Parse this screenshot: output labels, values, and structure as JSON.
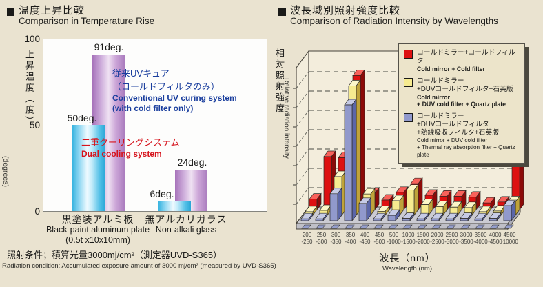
{
  "left_panel": {
    "title_jp": "温度上昇比較",
    "title_en": "Comparison in Temperature Rise",
    "y_axis": {
      "label_jp": "上昇温度（度）",
      "label_en": "(degrees)",
      "ticks": [
        "100",
        "50",
        "0"
      ]
    },
    "legend_conventional": {
      "jp1": "従来UVキュア",
      "jp2": "（コールドフィルタのみ）",
      "en1": "Conventional UV curing system",
      "en2": "(with cold filter only)",
      "color": "#1b3f9e"
    },
    "legend_dual": {
      "jp": "二重クーリングシステム",
      "en": "Dual cooling system",
      "color": "#d6131c"
    },
    "footer_jp": "照射条件；積算光量3000mj/cm²（測定器UVD-S365）",
    "footer_en": "Radiation condition: Accumulated exposure amount of 3000 mj/cm² (measured by UVD-S365)"
  },
  "right_panel": {
    "title_jp": "波長域別照射強度比較",
    "title_en": "Comparison of Radiation Intensity by Wavelengths",
    "y_axis_jp": "相対照射強度",
    "y_axis_en": "Relative radiation intensity",
    "x_axis_jp": "波長（nm）",
    "x_axis_en": "Wavelength (nm)",
    "legend": [
      {
        "color": "#dd1111",
        "jp": [
          "コールドミラー+コールドフィルタ"
        ],
        "en": [
          "Cold mirror + Cold filter"
        ],
        "en_bold": true
      },
      {
        "color": "#f6eb90",
        "jp": [
          "コールドミラー",
          "+DUVコールドフィルタ+石英版"
        ],
        "en": [
          "Cold mirror",
          "+ DUV cold filter + Quartz plate"
        ],
        "en_bold": true
      },
      {
        "color": "#9199cc",
        "jp": [
          "コールドミラー",
          "+DUVコールドフィルタ",
          "+熱線吸収フィルタ+石英版"
        ],
        "en": [
          "Cold mirror + DUV cold filter",
          "+ Thermal ray absorption filter + Quartz plate"
        ],
        "en_bold": false
      }
    ]
  },
  "chart_data": [
    {
      "type": "bar",
      "title": "Comparison in Temperature Rise",
      "ylabel": "Temperature rise (degrees)",
      "ylim": [
        0,
        100
      ],
      "yticks": [
        0,
        50,
        100
      ],
      "categories": [
        "黒塗装アルミ板 Black-paint aluminum plate (0.5t x10x10mm)",
        "無アルカリガラス Non-alkali glass"
      ],
      "series": [
        {
          "name": "Dual cooling system (二重クーリングシステム)",
          "color": "cyan",
          "values": [
            50,
            6
          ],
          "labels": [
            "50deg.",
            "6deg."
          ]
        },
        {
          "name": "Conventional UV curing system with cold filter only (従来UVキュア)",
          "color": "purple",
          "values": [
            91,
            24
          ],
          "labels": [
            "91deg.",
            "24deg."
          ]
        }
      ],
      "groups": [
        {
          "label_jp": "黒塗装アルミ板",
          "label_en": "Black-paint aluminum plate",
          "label_sub": "(0.5t x10x10mm)"
        },
        {
          "label_jp": "無アルカリガラス",
          "label_en": "Non-alkali glass",
          "label_sub": ""
        }
      ]
    },
    {
      "type": "bar",
      "subtype": "3d",
      "title": "Comparison of Radiation Intensity by Wavelengths",
      "xlabel": "Wavelength (nm)",
      "ylabel": "Relative radiation intensity",
      "y_gridlines": 7,
      "y_note": "unlabeled relative scale; values in gridline units",
      "categories": [
        "200-250",
        "250-300",
        "300-350",
        "350-400",
        "400-450",
        "450-500",
        "500-1000",
        "1000-1500",
        "1500-2000",
        "2000-2500",
        "2500-3000",
        "3000-3500",
        "3500-4000",
        "4000-4500",
        "4500-10000"
      ],
      "series": [
        {
          "name": "Cold mirror + Cold filter",
          "row": "back",
          "color": "#dd1111",
          "values": [
            0.55,
            2.75,
            2.7,
            6.95,
            0.85,
            0.5,
            0.9,
            1.35,
            0.75,
            0.7,
            0.7,
            0.65,
            0.35,
            0.4,
            2.25
          ]
        },
        {
          "name": "Cold mirror + DUV cold filter + Quartz plate",
          "row": "middle",
          "color": "#f6eb90",
          "values": [
            0.18,
            0.25,
            2.0,
            6.7,
            1.1,
            0.2,
            0.75,
            1.3,
            0.55,
            0.45,
            0.42,
            0.4,
            0.18,
            0.22,
            0.7
          ]
        },
        {
          "name": "Cold mirror + DUV cold filter + Thermal ray absorption filter + Quartz plate",
          "row": "front",
          "color": "#9199cc",
          "values": [
            0.1,
            0.1,
            1.4,
            6.0,
            0.9,
            0.1,
            0.28,
            0.12,
            0.1,
            0.1,
            0.1,
            0.12,
            0.1,
            0.12,
            0.78
          ]
        }
      ]
    }
  ]
}
